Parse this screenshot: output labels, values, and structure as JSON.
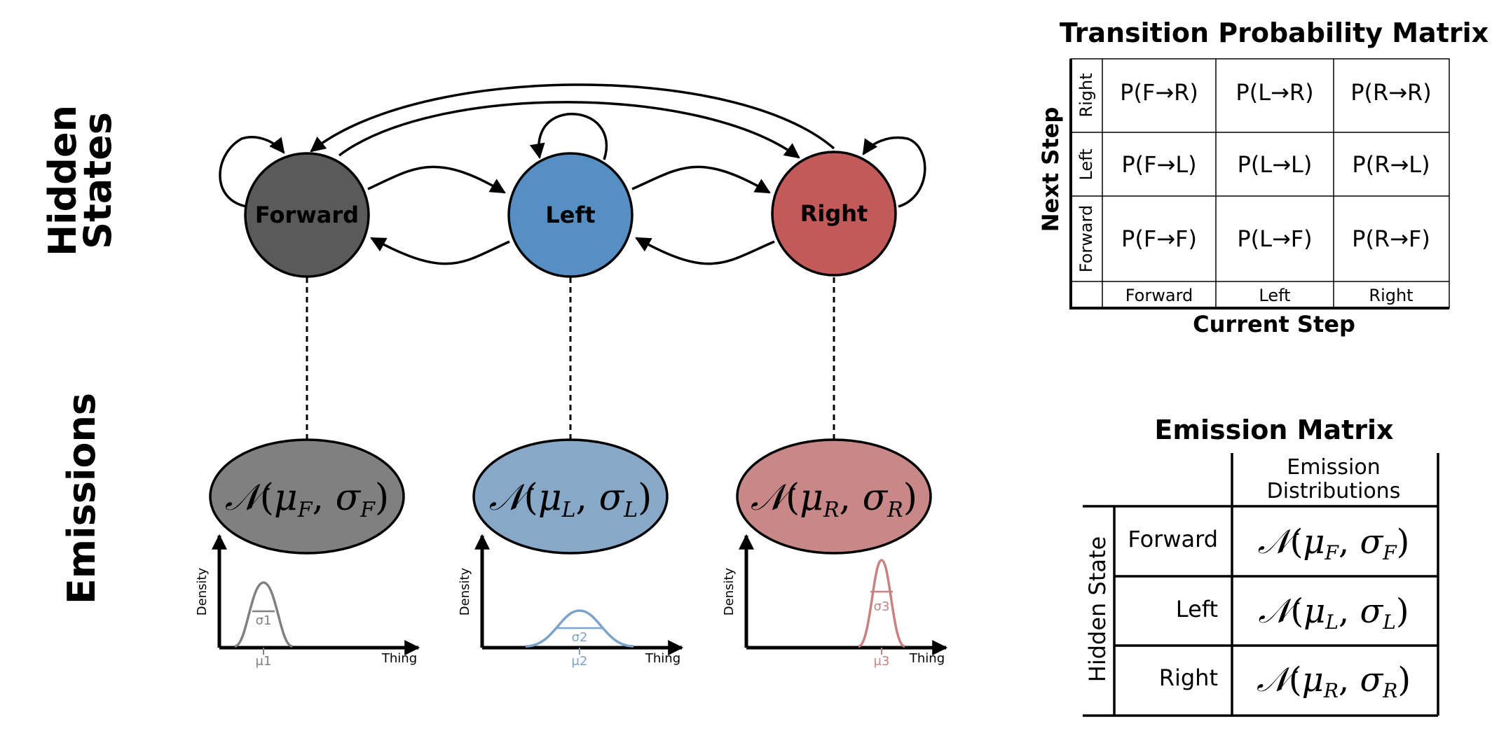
{
  "side_labels": {
    "hidden_line1": "Hidden",
    "hidden_line2": "States",
    "emissions": "Emissions"
  },
  "states": [
    {
      "label": "Forward",
      "color": "#5a5a5a"
    },
    {
      "label": "Left",
      "color": "#568fc3"
    },
    {
      "label": "Right",
      "color": "#c35a5a"
    }
  ],
  "emissions": [
    {
      "sym": "𝒩",
      "mu": "μ",
      "sub": "F",
      "sigma": "σ",
      "color": "#808080",
      "plot": {
        "ylabel": "Density",
        "xlabel": "Thing",
        "sigma_label": "σ1",
        "mu_label": "μ1",
        "curve_color": "#808080"
      }
    },
    {
      "sym": "𝒩",
      "mu": "μ",
      "sub": "L",
      "sigma": "σ",
      "color": "#88a8c8",
      "plot": {
        "ylabel": "Density",
        "xlabel": "Thing",
        "sigma_label": "σ2",
        "mu_label": "μ2",
        "curve_color": "#7da3c8"
      }
    },
    {
      "sym": "𝒩",
      "mu": "μ",
      "sub": "R",
      "sigma": "σ",
      "color": "#c88888",
      "plot": {
        "ylabel": "Density",
        "xlabel": "Thing",
        "sigma_label": "σ3",
        "mu_label": "μ3",
        "curve_color": "#c88282"
      }
    }
  ],
  "transition_matrix": {
    "title": "Transition Probability Matrix",
    "ylabel": "Next Step",
    "xlabel": "Current Step",
    "row_labels": [
      "Right",
      "Left",
      "Forward"
    ],
    "col_labels": [
      "Forward",
      "Left",
      "Right"
    ],
    "cells": [
      [
        "P(F→R)",
        "P(L→R)",
        "P(R→R)"
      ],
      [
        "P(F→L)",
        "P(L→L)",
        "P(R→L)"
      ],
      [
        "P(F→F)",
        "P(L→F)",
        "P(R→F)"
      ]
    ]
  },
  "emission_matrix": {
    "title": "Emission Matrix",
    "header_line1": "Emission",
    "header_line2": "Distributions",
    "row_group_label": "Hidden State",
    "rows": [
      {
        "label": "Forward",
        "sub": "F"
      },
      {
        "label": "Left",
        "sub": "L"
      },
      {
        "label": "Right",
        "sub": "R"
      }
    ]
  }
}
